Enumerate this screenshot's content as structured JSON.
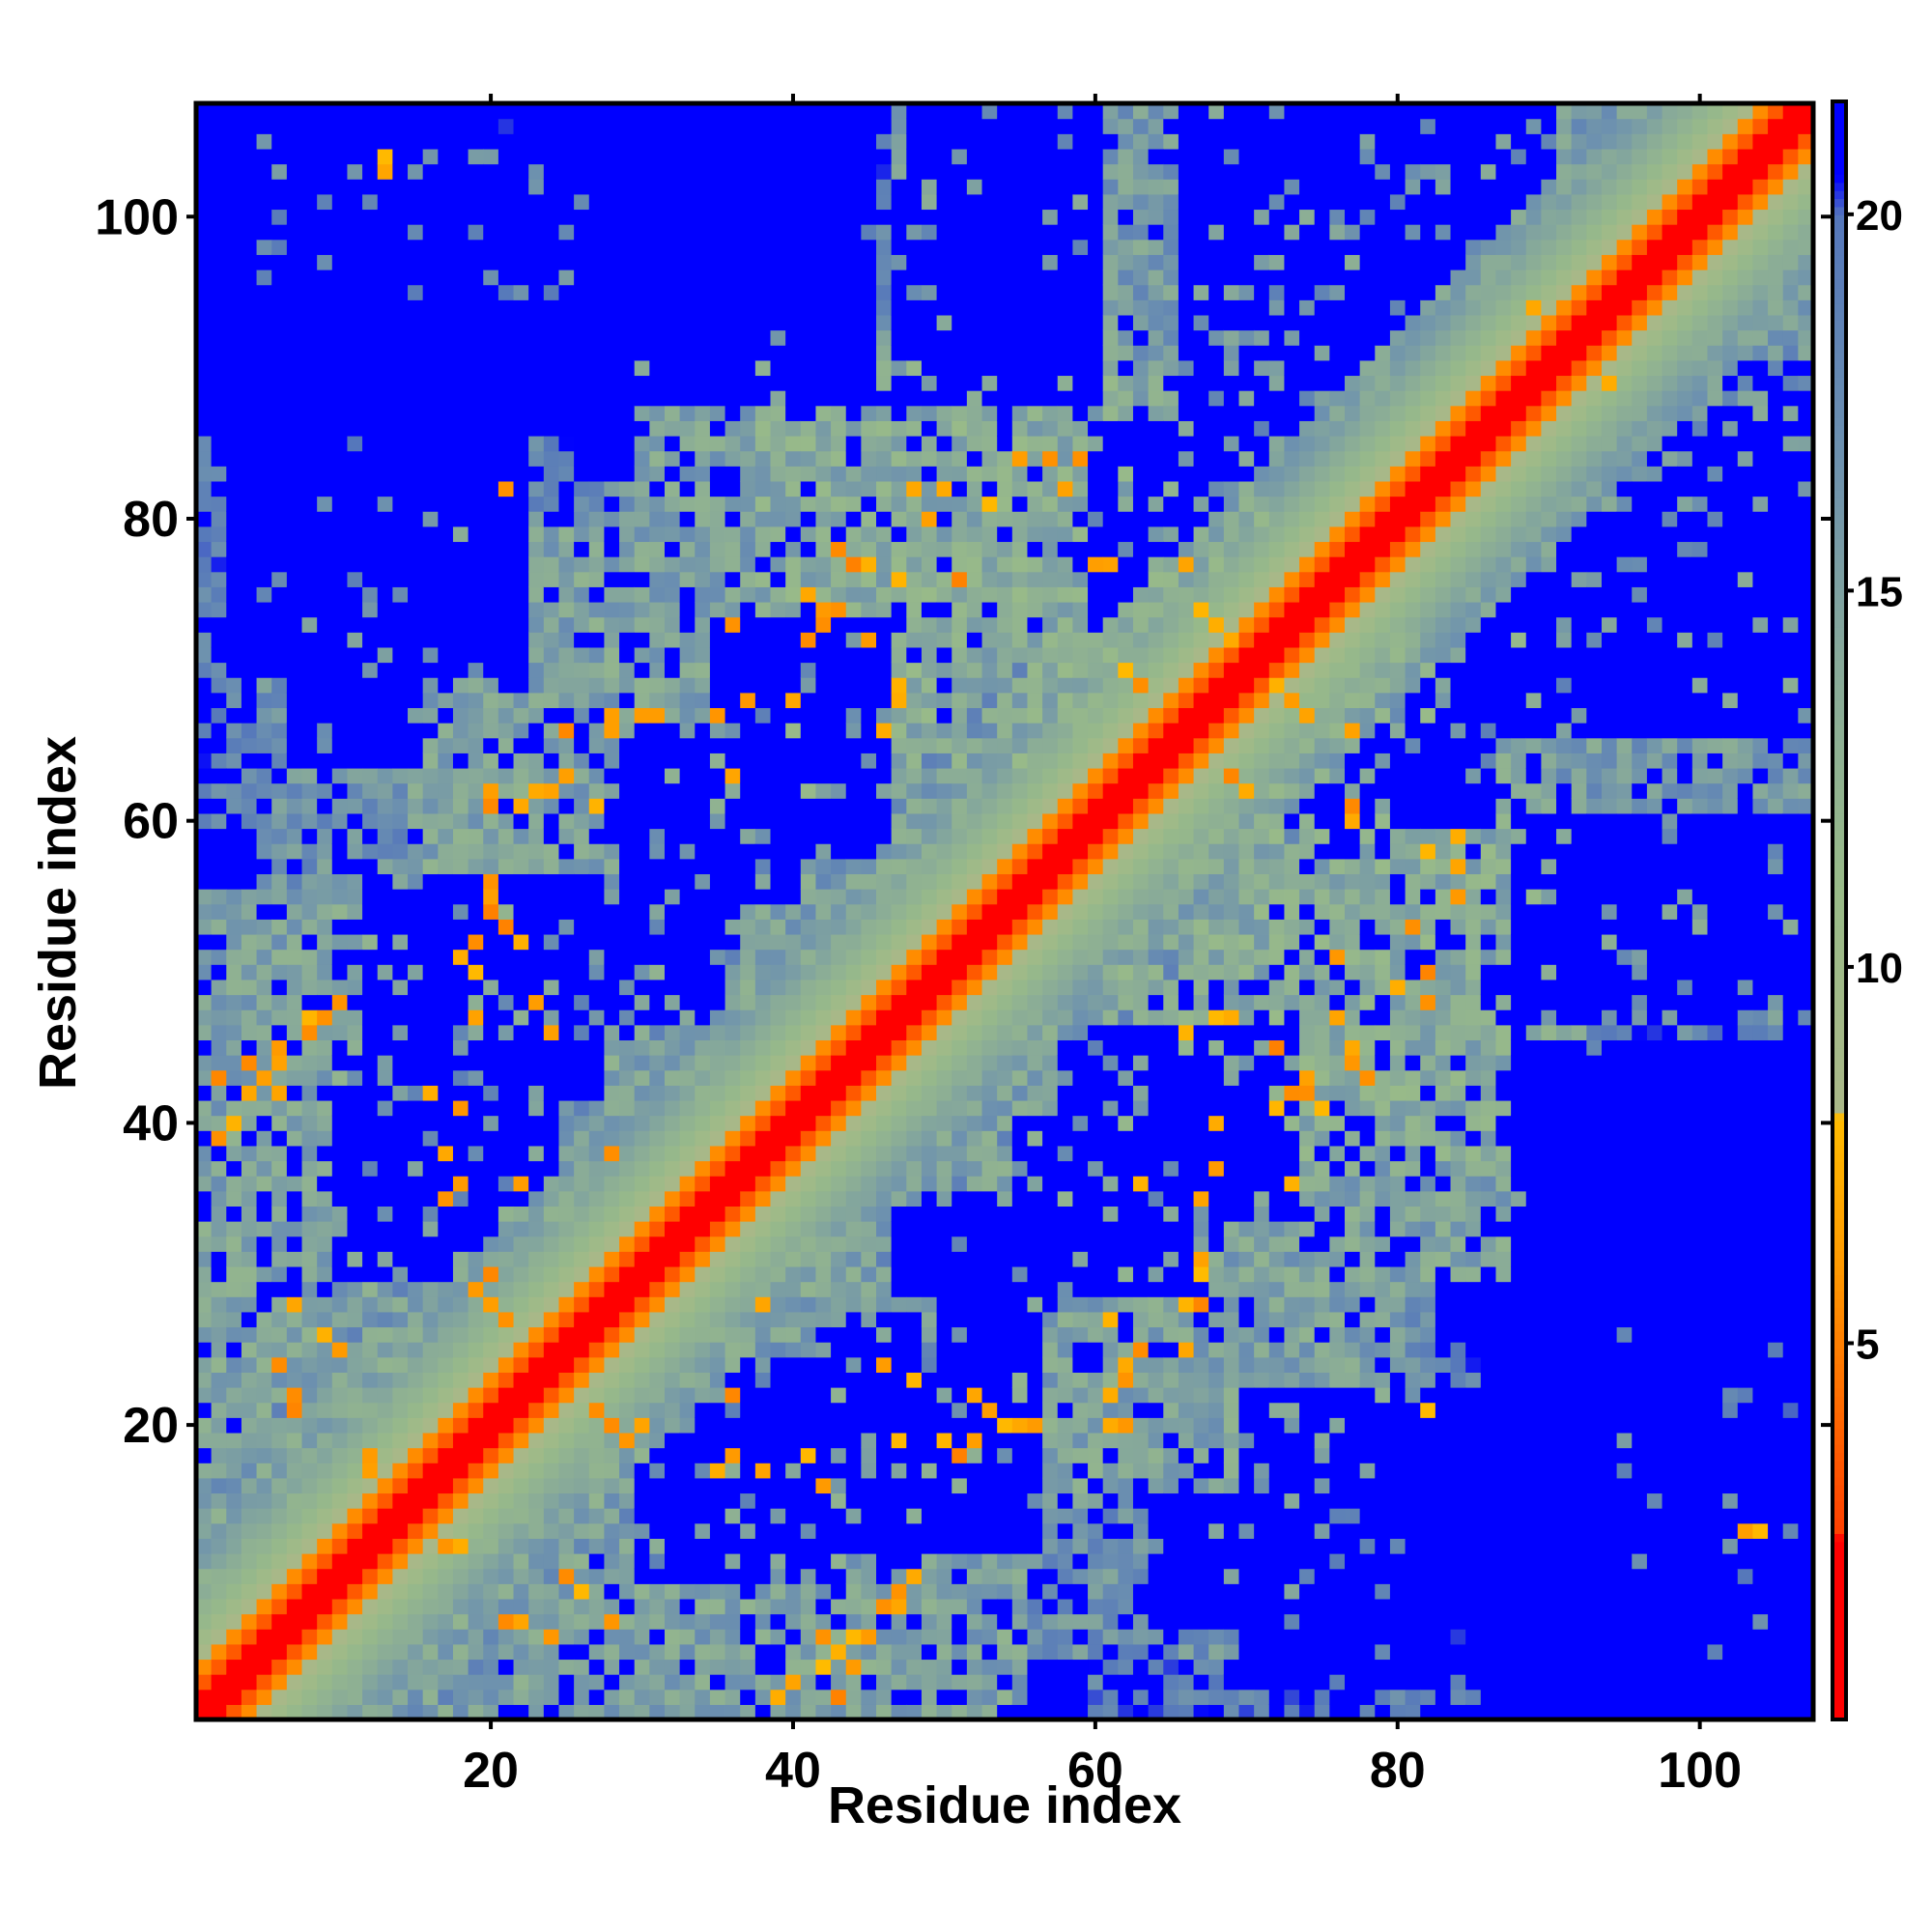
{
  "chart_data": {
    "type": "heatmap",
    "title": "",
    "xlabel": "Residue index",
    "ylabel": "Residue index",
    "n_residues": 107,
    "xlim": [
      0.5,
      107.5
    ],
    "ylim": [
      0.5,
      107.5
    ],
    "x_ticks": [
      20,
      40,
      60,
      80,
      100
    ],
    "y_ticks": [
      20,
      40,
      60,
      80,
      100
    ],
    "colorbar": {
      "min": 0,
      "max": 21.5,
      "ticks": [
        5,
        10,
        15,
        20
      ],
      "stops": [
        {
          "value": 0,
          "color": "#ff0000"
        },
        {
          "value": 2.4,
          "color": "#ff0000"
        },
        {
          "value": 2.5,
          "color": "#ff4000"
        },
        {
          "value": 4.0,
          "color": "#ff6600"
        },
        {
          "value": 6.0,
          "color": "#ff9900"
        },
        {
          "value": 8.0,
          "color": "#ffbb00"
        },
        {
          "value": 8.1,
          "color": "#aab888"
        },
        {
          "value": 11.0,
          "color": "#99bb88"
        },
        {
          "value": 14.0,
          "color": "#88aa99"
        },
        {
          "value": 17.0,
          "color": "#6b8fb0"
        },
        {
          "value": 20.0,
          "color": "#5577bb"
        },
        {
          "value": 20.5,
          "color": "#0000ff"
        },
        {
          "value": 21.5,
          "color": "#0000ff"
        }
      ]
    },
    "diagonal_profile": [
      {
        "offset": 0,
        "value": 0
      },
      {
        "offset": 1,
        "value": 1.5
      },
      {
        "offset": 2,
        "value": 3.5
      },
      {
        "offset": 3,
        "value": 5.5
      },
      {
        "offset": 4,
        "value": 8.5
      },
      {
        "offset": 5,
        "value": 10
      },
      {
        "offset": 6,
        "value": 11.5
      },
      {
        "offset": 8,
        "value": 13.5
      },
      {
        "offset": 10,
        "value": 15.5
      },
      {
        "offset": 13,
        "value": 17.5
      },
      {
        "offset": 16,
        "value": 19.5
      }
    ],
    "contact_regions": [
      {
        "i": [
          0,
          48
        ],
        "j": [
          0,
          28
        ],
        "value": 14
      },
      {
        "i": [
          0,
          35
        ],
        "j": [
          12,
          55
        ],
        "value": 14
      },
      {
        "i": [
          15,
          58
        ],
        "j": [
          48,
          80
        ],
        "value": 14
      },
      {
        "i": [
          38,
          72
        ],
        "j": [
          60,
          90
        ],
        "value": 13
      },
      {
        "i": [
          47,
          100
        ],
        "j": [
          70,
          108
        ],
        "value": 15
      },
      {
        "i": [
          55,
          92
        ],
        "j": [
          30,
          62
        ],
        "value": 14
      },
      {
        "i": [
          35,
          55
        ],
        "j": [
          0,
          30
        ],
        "value": 15
      },
      {
        "i": [
          80,
          105
        ],
        "j": [
          45,
          62
        ],
        "value": 17
      },
      {
        "i": [
          60,
          85
        ],
        "j": [
          0,
          25
        ],
        "value": 18
      },
      {
        "i": [
          5,
          26
        ],
        "j": [
          95,
          106
        ],
        "value": 17
      },
      {
        "i": [
          5,
          30
        ],
        "j": [
          55,
          82
        ],
        "value": 16
      }
    ],
    "orange_contacts": [
      [
        8,
        46
      ],
      [
        9,
        47
      ],
      [
        10,
        48
      ],
      [
        4,
        44
      ],
      [
        5,
        43
      ],
      [
        3,
        40
      ],
      [
        6,
        42
      ],
      [
        20,
        54
      ],
      [
        21,
        53
      ],
      [
        22,
        52
      ],
      [
        23,
        48
      ],
      [
        22,
        61
      ],
      [
        23,
        62
      ],
      [
        27,
        61
      ],
      [
        28,
        66
      ],
      [
        30,
        67
      ],
      [
        31,
        67
      ],
      [
        35,
        67
      ],
      [
        37,
        68
      ],
      [
        40,
        68
      ],
      [
        41,
        72
      ],
      [
        42,
        73
      ],
      [
        43,
        74
      ],
      [
        44,
        77
      ],
      [
        45,
        77
      ],
      [
        47,
        76
      ],
      [
        51,
        76
      ],
      [
        53,
        81
      ],
      [
        55,
        84
      ],
      [
        57,
        84
      ],
      [
        58,
        82
      ],
      [
        60,
        77
      ],
      [
        61,
        77
      ],
      [
        66,
        77
      ],
      [
        67,
        74
      ],
      [
        68,
        73
      ],
      [
        69,
        72
      ],
      [
        68,
        47
      ],
      [
        69,
        47
      ],
      [
        72,
        45
      ],
      [
        73,
        42
      ],
      [
        74,
        42
      ],
      [
        75,
        41
      ],
      [
        78,
        43
      ],
      [
        80,
        49
      ],
      [
        82,
        48
      ],
      [
        84,
        59
      ],
      [
        82,
        50
      ],
      [
        69,
        63
      ],
      [
        70,
        62
      ],
      [
        66,
        46
      ],
      [
        63,
        36
      ],
      [
        27,
        21
      ],
      [
        28,
        20
      ],
      [
        29,
        19
      ],
      [
        30,
        20
      ],
      [
        35,
        17
      ],
      [
        36,
        18
      ],
      [
        38,
        17
      ],
      [
        41,
        18
      ],
      [
        42,
        16
      ],
      [
        47,
        19
      ],
      [
        50,
        19
      ],
      [
        51,
        18
      ],
      [
        52,
        19
      ],
      [
        55,
        20
      ],
      [
        56,
        20
      ],
      [
        61,
        20
      ],
      [
        62,
        20
      ],
      [
        62,
        24
      ],
      [
        63,
        25
      ],
      [
        66,
        25
      ],
      [
        67,
        28
      ],
      [
        46,
        24
      ],
      [
        45,
        6
      ],
      [
        44,
        6
      ],
      [
        42,
        4
      ],
      [
        43,
        2
      ],
      [
        39,
        2
      ],
      [
        40,
        3
      ],
      [
        46,
        8
      ],
      [
        47,
        8
      ],
      [
        36,
        22
      ],
      [
        38,
        28
      ],
      [
        9,
        26
      ],
      [
        10,
        25
      ],
      [
        7,
        28
      ],
      [
        6,
        24
      ],
      [
        17,
        12
      ],
      [
        18,
        12
      ],
      [
        21,
        7
      ],
      [
        22,
        7
      ],
      [
        13,
        103
      ],
      [
        104,
        13
      ],
      [
        73,
        36
      ],
      [
        82,
        21
      ],
      [
        89,
        94
      ],
      [
        93,
        91
      ],
      [
        95,
        96
      ],
      [
        96,
        98
      ]
    ],
    "blue_holes": [
      {
        "i": [
          22,
          40
        ],
        "j": [
          88,
          108
        ]
      },
      {
        "i": [
          3,
          22
        ],
        "j": [
          70,
          90
        ]
      },
      {
        "i": [
          88,
          107
        ],
        "j": [
          0,
          45
        ]
      },
      {
        "i": [
          84,
          107
        ],
        "j": [
          66,
          86
        ]
      },
      {
        "i": [
          70,
          90
        ],
        "j": [
          88,
          108
        ]
      },
      {
        "i": [
          48,
          60
        ],
        "j": [
          88,
          108
        ]
      },
      {
        "i": [
          42,
          56
        ],
        "j": [
          12,
          27
        ]
      },
      {
        "i": [
          10,
          24
        ],
        "j": [
          30,
          42
        ]
      },
      {
        "i": [
          29,
          40
        ],
        "j": [
          55,
          66
        ]
      },
      {
        "i": [
          58,
          73
        ],
        "j": [
          35,
          46
        ]
      },
      {
        "i": [
          72,
          86
        ],
        "j": [
          60,
          70
        ]
      },
      {
        "i": [
          47,
          54
        ],
        "j": [
          25,
          35
        ]
      },
      {
        "i": [
          64,
          76
        ],
        "j": [
          7,
          15
        ]
      },
      {
        "i": [
          88,
          102
        ],
        "j": [
          47,
          58
        ]
      },
      {
        "i": [
          100,
          107
        ],
        "j": [
          100,
          104
        ]
      }
    ]
  }
}
